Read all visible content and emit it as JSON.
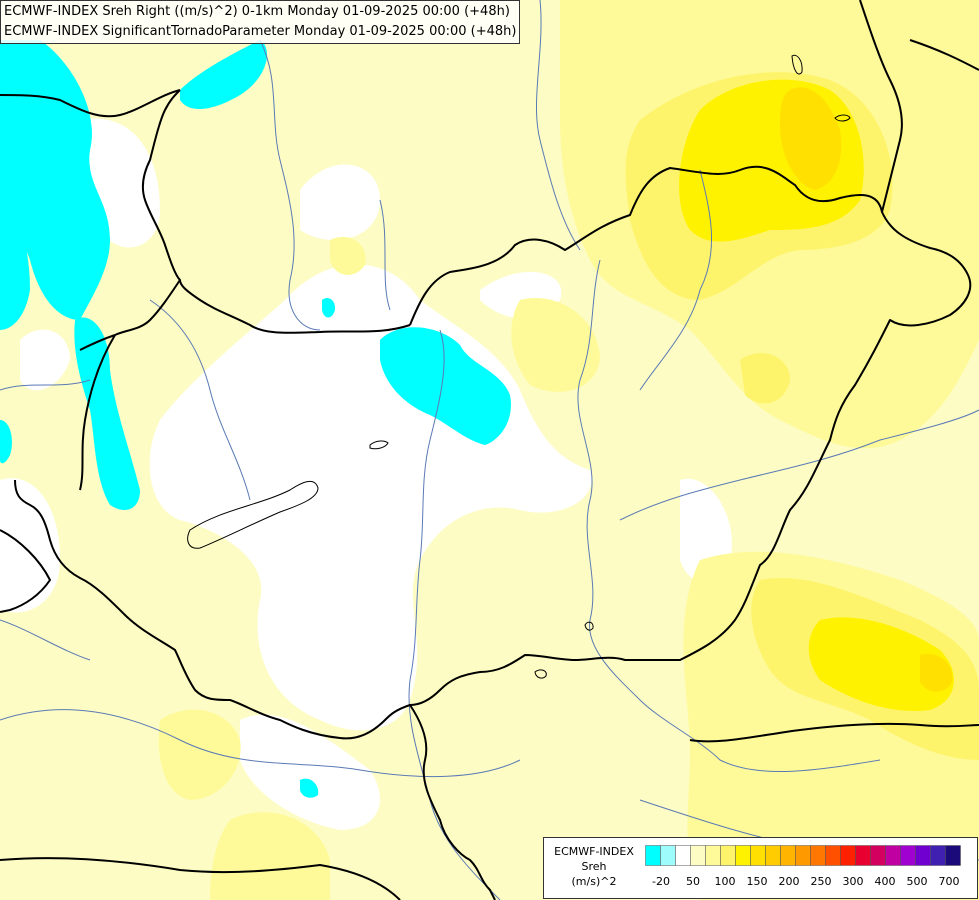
{
  "title": {
    "line1": "ECMWF-INDEX Sreh Right ((m/s)^2) 0-1km Monday 01-09-2025 00:00 (+48h)",
    "line2": "ECMWF-INDEX SignificantTornadoParameter Monday 01-09-2025 00:00 (+48h)"
  },
  "legend": {
    "source": "ECMWF-INDEX",
    "variable": "Sreh",
    "unit": "(m/s)^2",
    "colors": [
      "#00ffff",
      "#9ffcfc",
      "#ffffff",
      "#fdfcc4",
      "#fefa9a",
      "#fef46c",
      "#fff200",
      "#ffe000",
      "#ffcc00",
      "#ffb400",
      "#ff9900",
      "#ff7700",
      "#ff5000",
      "#ff2000",
      "#e80030",
      "#d40060",
      "#c000a0",
      "#a000d0",
      "#7000d0",
      "#4020b0",
      "#1a0a7a"
    ],
    "ticks": [
      "-20",
      "50",
      "100",
      "150",
      "200",
      "250",
      "300",
      "400",
      "500",
      "700"
    ]
  },
  "palette": {
    "background": "#fdfcc4",
    "cyan": "#00ffff",
    "white": "#ffffff",
    "light_yellow": "#fefa9a",
    "yellow": "#fef46c",
    "strong_yellow": "#fff200",
    "gold": "#ffe000",
    "border": "#000000",
    "river": "#5a7ab5"
  }
}
